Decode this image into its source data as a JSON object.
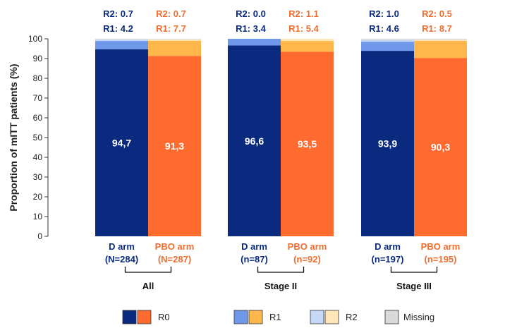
{
  "chart_data": {
    "type": "bar",
    "stacked": true,
    "ylabel": "Proportion of mITT patients (%)",
    "ylim": [
      0,
      100
    ],
    "yticks": [
      "0",
      "10",
      "20",
      "30",
      "40",
      "50",
      "60",
      "70",
      "80",
      "90",
      "100"
    ],
    "colors": {
      "d": {
        "R0": "#0a2a80",
        "R1": "#6f97ea",
        "R2": "#c6d8f7"
      },
      "pbo": {
        "R0": "#ff6a2e",
        "R1": "#ffb64a",
        "R2": "#ffe6b8"
      },
      "missing": "#d9d9d9",
      "d_text": "#0a2a80",
      "pbo_text": "#ef6d2f"
    },
    "groups": [
      {
        "name": "All",
        "bars": [
          {
            "arm": "d",
            "label": "D arm",
            "n": "(N=284)",
            "R0": 94.7,
            "R0_label": "94,7",
            "R1": 4.2,
            "R2": 0.7,
            "R1_text": "R1: 4.2",
            "R2_text": "R2: 0.7"
          },
          {
            "arm": "pbo",
            "label": "PBO arm",
            "n": "(N=287)",
            "R0": 91.3,
            "R0_label": "91,3",
            "R1": 7.7,
            "R2": 0.7,
            "R1_text": "R1: 7.7",
            "R2_text": "R2: 0.7"
          }
        ]
      },
      {
        "name": "Stage II",
        "bars": [
          {
            "arm": "d",
            "label": "D arm",
            "n": "(n=87)",
            "R0": 96.6,
            "R0_label": "96,6",
            "R1": 3.4,
            "R2": 0.0,
            "R1_text": "R1: 3.4",
            "R2_text": "R2: 0.0"
          },
          {
            "arm": "pbo",
            "label": "PBO arm",
            "n": "(n=92)",
            "R0": 93.5,
            "R0_label": "93,5",
            "R1": 5.4,
            "R2": 1.1,
            "R1_text": "R1: 5.4",
            "R2_text": "R2: 1.1"
          }
        ]
      },
      {
        "name": "Stage III",
        "bars": [
          {
            "arm": "d",
            "label": "D arm",
            "n": "(n=197)",
            "R0": 93.9,
            "R0_label": "93,9",
            "R1": 4.6,
            "R2": 1.0,
            "R1_text": "R1: 4.6",
            "R2_text": "R2: 1.0"
          },
          {
            "arm": "pbo",
            "label": "PBO arm",
            "n": "(n=195)",
            "R0": 90.3,
            "R0_label": "90,3",
            "R1": 8.7,
            "R2": 0.5,
            "R1_text": "R1: 8.7",
            "R2_text": "R2: 0.5"
          }
        ]
      }
    ],
    "legend": [
      {
        "key": "R0",
        "label": "R0"
      },
      {
        "key": "R1",
        "label": "R1"
      },
      {
        "key": "R2",
        "label": "R2"
      },
      {
        "key": "missing",
        "label": "Missing"
      }
    ]
  }
}
